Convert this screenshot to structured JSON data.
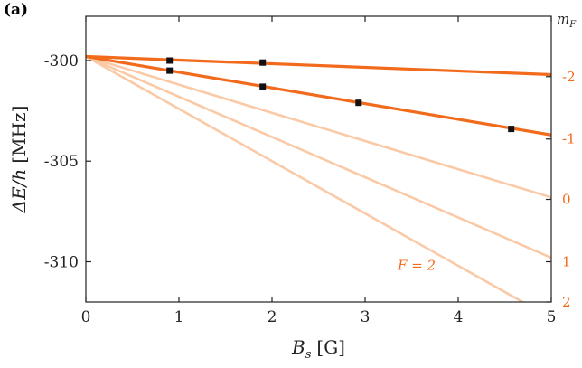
{
  "panel_label": "(a)",
  "colors": {
    "dark_line": "#F26A1B",
    "light_line": "#FAC9A6",
    "marker": "#111111",
    "right_axis": "#F26A1B",
    "axes": "#222222"
  },
  "chart_data": {
    "type": "line",
    "xlabel_main": "B",
    "xlabel_sub": "s",
    "xlabel_unit": "[G]",
    "ylabel_main": "ΔE/h",
    "ylabel_unit": "[MHz]",
    "xlim": [
      0,
      5
    ],
    "ylim": [
      -312,
      -297.8
    ],
    "x_ticks": [
      0,
      1,
      2,
      3,
      4,
      5
    ],
    "y_ticks": [
      -300,
      -305,
      -310
    ],
    "y_tick_labels": [
      "-300",
      "-305",
      "-310"
    ],
    "right_axis_label_main": "m",
    "right_axis_label_sub": "F",
    "right_axis_labels": [
      {
        "text": "-2",
        "at_y": -300.8
      },
      {
        "text": "-1",
        "at_y": -303.9
      },
      {
        "text": "0",
        "at_y": -306.9
      },
      {
        "text": "1",
        "at_y": -310.0
      },
      {
        "text": "2",
        "at_y": -312.0
      }
    ],
    "annotation": {
      "text": "F = 2",
      "x": 3.35,
      "y": -310.4
    },
    "grid": false,
    "series": [
      {
        "mF": -2,
        "style": "dark",
        "x": [
          0,
          5
        ],
        "y": [
          -299.8,
          -300.7
        ]
      },
      {
        "mF": -1,
        "style": "dark",
        "x": [
          0,
          5
        ],
        "y": [
          -299.8,
          -303.7
        ]
      },
      {
        "mF": 0,
        "style": "light",
        "x": [
          0,
          5
        ],
        "y": [
          -299.8,
          -306.8
        ]
      },
      {
        "mF": 1,
        "style": "light",
        "x": [
          0,
          5
        ],
        "y": [
          -299.8,
          -309.8
        ]
      },
      {
        "mF": 2,
        "style": "light",
        "x": [
          0,
          5
        ],
        "y": [
          -299.8,
          -312.8
        ]
      }
    ],
    "measured_points": [
      {
        "x": 0.9,
        "y": -300.0
      },
      {
        "x": 1.9,
        "y": -300.1
      },
      {
        "x": 0.9,
        "y": -300.5
      },
      {
        "x": 1.9,
        "y": -301.3
      },
      {
        "x": 2.93,
        "y": -302.1
      },
      {
        "x": 4.57,
        "y": -303.4
      }
    ]
  }
}
